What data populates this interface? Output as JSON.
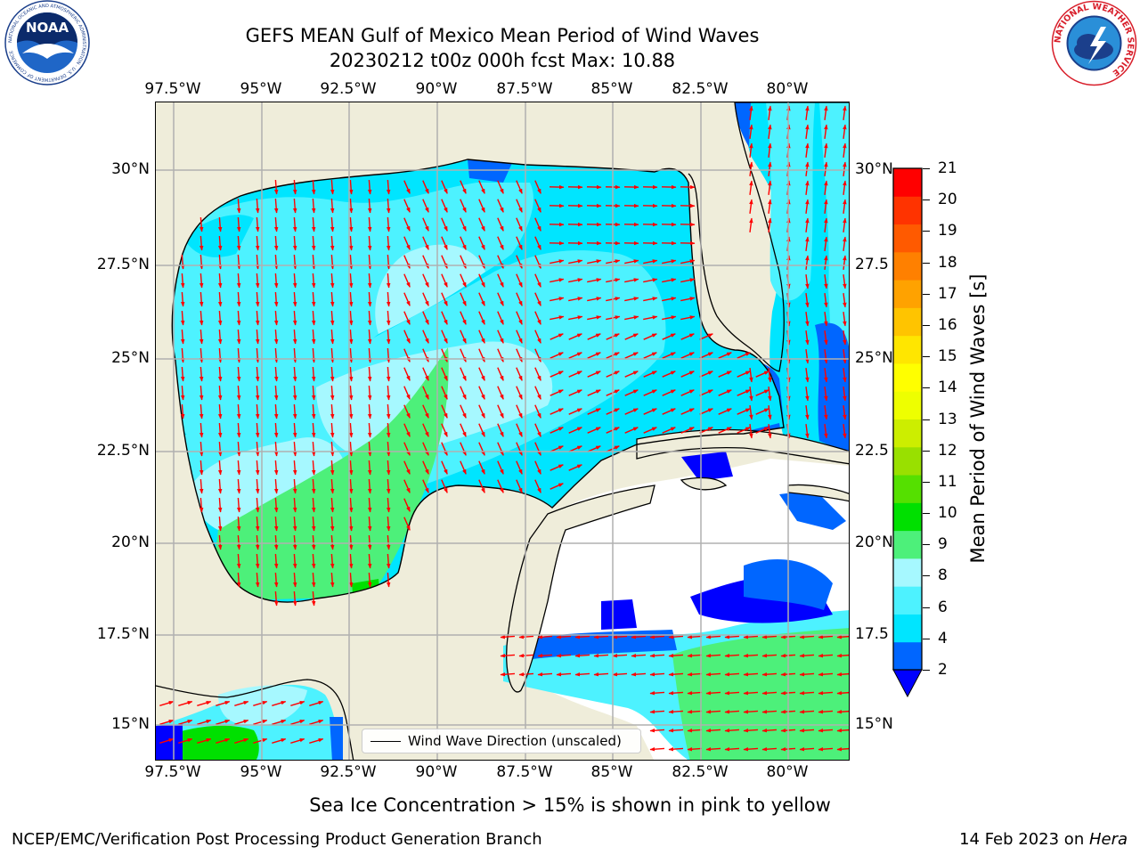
{
  "title": {
    "line1": "GEFS MEAN Gulf of Mexico Mean Period of Wind Waves",
    "line2": "20230212 t00z 000h fcst   Max: 10.88"
  },
  "axes": {
    "top_ticks": [
      "97.5°W",
      "95°W",
      "92.5°W",
      "90°W",
      "87.5°W",
      "85°W",
      "82.5°W",
      "80°W"
    ],
    "bottom_ticks": [
      "97.5°W",
      "95°W",
      "92.5°W",
      "90°W",
      "87.5°W",
      "85°W",
      "82.5°W",
      "80°W"
    ],
    "left_ticks": [
      "30°N",
      "27.5°N",
      "25°N",
      "22.5°N",
      "20°N",
      "17.5°N",
      "15°N"
    ],
    "right_ticks": [
      "30°N",
      "27.5",
      "25°N",
      "22.5",
      "20°N",
      "17.5",
      "15°N"
    ]
  },
  "legend": {
    "label": "Wind Wave Direction (unscaled)"
  },
  "colorbar": {
    "label": "Mean Period of Wind Waves [s]",
    "ticks": [
      "21",
      "20",
      "19",
      "18",
      "17",
      "16",
      "15",
      "14",
      "13",
      "12",
      "11",
      "10",
      "9",
      "8",
      "6",
      "4",
      "2"
    ],
    "colors": [
      "#0066ff",
      "#00e5ff",
      "#4df2ff",
      "#a6f8ff",
      "#4df07a",
      "#00e000",
      "#55e000",
      "#99e000",
      "#ccee00",
      "#eeff00",
      "#ffff00",
      "#ffe600",
      "#ffc400",
      "#ffa200",
      "#ff8000",
      "#ff5a00",
      "#ff3300",
      "#ff0000"
    ],
    "extend_color": "#0000ff"
  },
  "map_colors": {
    "land": "#efedda",
    "no_data": "#ffffff",
    "arrow": "#ff0000",
    "grid": "#b0b0b0"
  },
  "caption": "Sea Ice Concentration > 15% is shown in pink to yellow",
  "footer": {
    "left": "NCEP/EMC/Verification Post Processing Product Generation Branch",
    "right_date": "14 Feb 2023 on ",
    "right_machine": "Hera"
  },
  "logos": {
    "noaa_text": "NOAA",
    "noaa_ring": "NATIONAL OCEANIC AND ATMOSPHERIC ADMINISTRATION · U.S. DEPARTMENT OF COMMERCE",
    "nws_ring": "NATIONAL WEATHER SERVICE"
  }
}
